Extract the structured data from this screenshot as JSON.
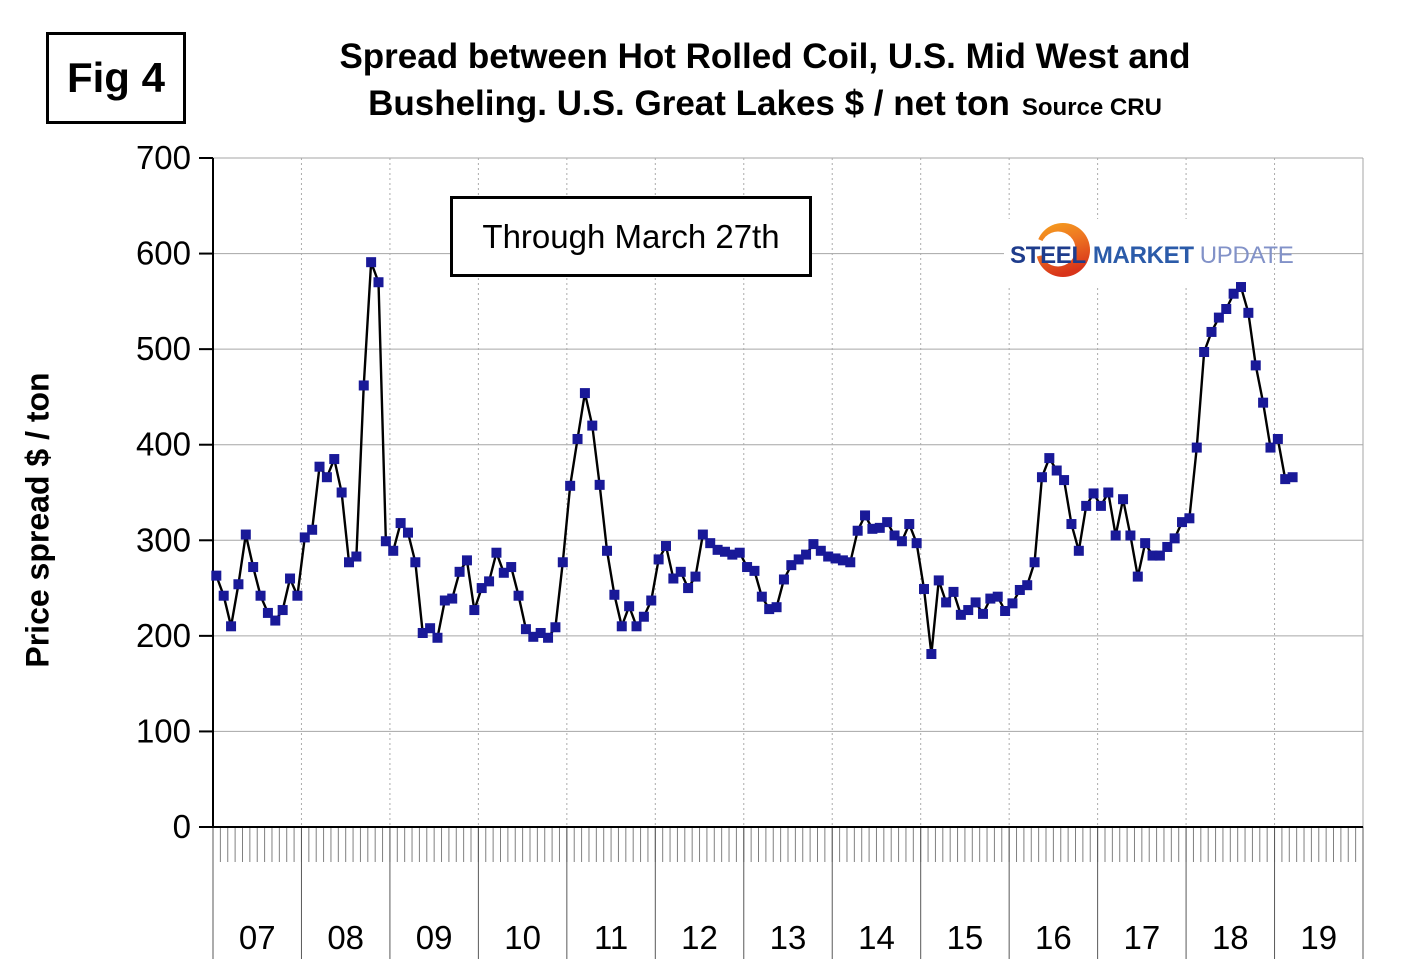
{
  "figure_label": "Fig 4",
  "title": {
    "line1": "Spread between Hot Rolled Coil, U.S. Mid West and",
    "line2": "Busheling. U.S. Great Lakes  $ / net ton",
    "source": "Source CRU"
  },
  "annotation": "Through March 27th",
  "y_axis_label": "Price spread $ / ton",
  "logo": {
    "word1": "STEEL",
    "word2": "MARKET",
    "word3": "UPDATE"
  },
  "chart_data": {
    "type": "line",
    "title": "Spread between Hot Rolled Coil, U.S. Mid West and Busheling. U.S. Great Lakes $ / net ton",
    "ylabel": "Price spread $ / ton",
    "unit": "$ / net ton",
    "source": "CRU",
    "ylim": [
      0,
      700
    ],
    "y_ticks": [
      0,
      100,
      200,
      300,
      400,
      500,
      600,
      700
    ],
    "x_tick_labels": [
      "07",
      "08",
      "09",
      "10",
      "11",
      "12",
      "13",
      "14",
      "15",
      "16",
      "17",
      "18",
      "19"
    ],
    "start_month": "2007-01",
    "end_month": "2019-03",
    "grid": true,
    "legend": "none",
    "marker": "square",
    "marker_color": "#191998",
    "line_color": "#000000",
    "monthly_values": [
      263,
      242,
      210,
      254,
      306,
      272,
      242,
      224,
      216,
      227,
      260,
      242,
      303,
      311,
      377,
      366,
      385,
      350,
      277,
      283,
      462,
      591,
      570,
      299,
      289,
      318,
      308,
      277,
      203,
      208,
      198,
      237,
      239,
      267,
      279,
      227,
      250,
      257,
      287,
      266,
      272,
      242,
      207,
      199,
      203,
      198,
      209,
      277,
      357,
      406,
      454,
      420,
      358,
      289,
      243,
      210,
      231,
      210,
      220,
      237,
      280,
      294,
      260,
      267,
      250,
      262,
      306,
      297,
      290,
      288,
      285,
      287,
      272,
      268,
      241,
      228,
      230,
      259,
      274,
      280,
      285,
      296,
      289,
      283,
      281,
      279,
      277,
      310,
      326,
      312,
      313,
      319,
      305,
      299,
      317,
      297,
      249,
      181,
      258,
      235,
      246,
      222,
      227,
      235,
      223,
      239,
      241,
      226,
      234,
      248,
      253,
      277,
      366,
      386,
      373,
      363,
      317,
      289,
      336,
      349,
      336,
      350,
      305,
      343,
      305,
      262,
      297,
      284,
      284,
      293,
      302,
      319,
      323,
      397,
      497,
      518,
      533,
      542,
      558,
      565,
      538,
      483,
      444,
      397,
      406,
      364,
      366
    ]
  }
}
